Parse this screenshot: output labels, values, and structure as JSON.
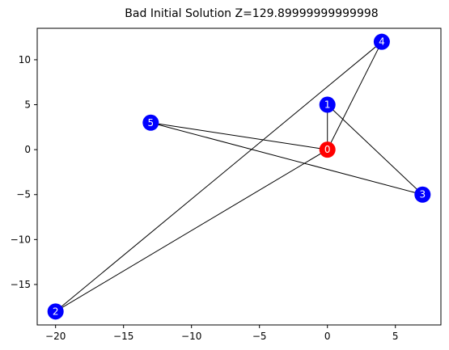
{
  "chart_data": {
    "type": "scatter",
    "title": "Bad Initial Solution Z=129.89999999999998",
    "xlabel": "",
    "ylabel": "",
    "xlim": [
      -21.35,
      8.35
    ],
    "ylim": [
      -19.5,
      13.5
    ],
    "xticks": [
      -20,
      -15,
      -10,
      -5,
      0,
      5
    ],
    "yticks": [
      -15,
      -10,
      -5,
      0,
      5,
      10
    ],
    "grid": false,
    "nodes": [
      {
        "id": "0",
        "x": 0,
        "y": 0,
        "color": "#ff0000"
      },
      {
        "id": "1",
        "x": 0,
        "y": 5,
        "color": "#0000ff"
      },
      {
        "id": "2",
        "x": -20,
        "y": -18,
        "color": "#0000ff"
      },
      {
        "id": "3",
        "x": 7,
        "y": -5,
        "color": "#0000ff"
      },
      {
        "id": "4",
        "x": 4,
        "y": 12,
        "color": "#0000ff"
      },
      {
        "id": "5",
        "x": -13,
        "y": 3,
        "color": "#0000ff"
      }
    ],
    "edges": [
      [
        "0",
        "1"
      ],
      [
        "1",
        "3"
      ],
      [
        "3",
        "5"
      ],
      [
        "5",
        "0"
      ],
      [
        "0",
        "4"
      ],
      [
        "4",
        "2"
      ],
      [
        "2",
        "0"
      ]
    ]
  }
}
